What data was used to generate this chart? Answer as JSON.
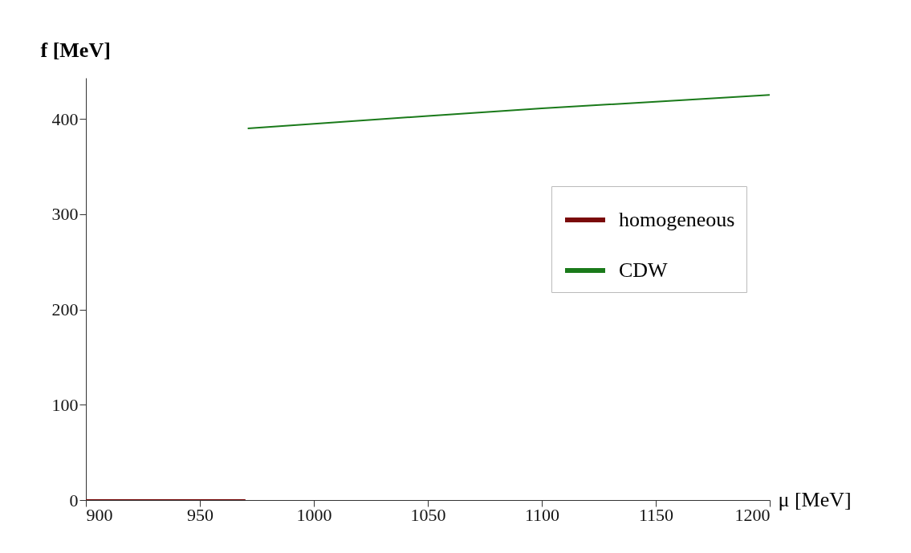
{
  "chart_data": {
    "type": "line",
    "xlabel": "μ [MeV]",
    "ylabel": "f [MeV]",
    "xlim": [
      900,
      1200
    ],
    "ylim": [
      0,
      443
    ],
    "xticks": [
      900,
      950,
      1000,
      1050,
      1100,
      1150,
      1200
    ],
    "yticks": [
      0,
      100,
      200,
      300,
      400
    ],
    "grid": false,
    "legend": "top right",
    "series": [
      {
        "name": "homogeneous",
        "color": "#7a0a0a",
        "x": [
          900,
          970
        ],
        "values": [
          0,
          0
        ]
      },
      {
        "name": "CDW",
        "color": "#1a7a1a",
        "x": [
          971,
          1050,
          1100,
          1150,
          1200
        ],
        "values": [
          390,
          403,
          411,
          418,
          425
        ]
      }
    ]
  }
}
